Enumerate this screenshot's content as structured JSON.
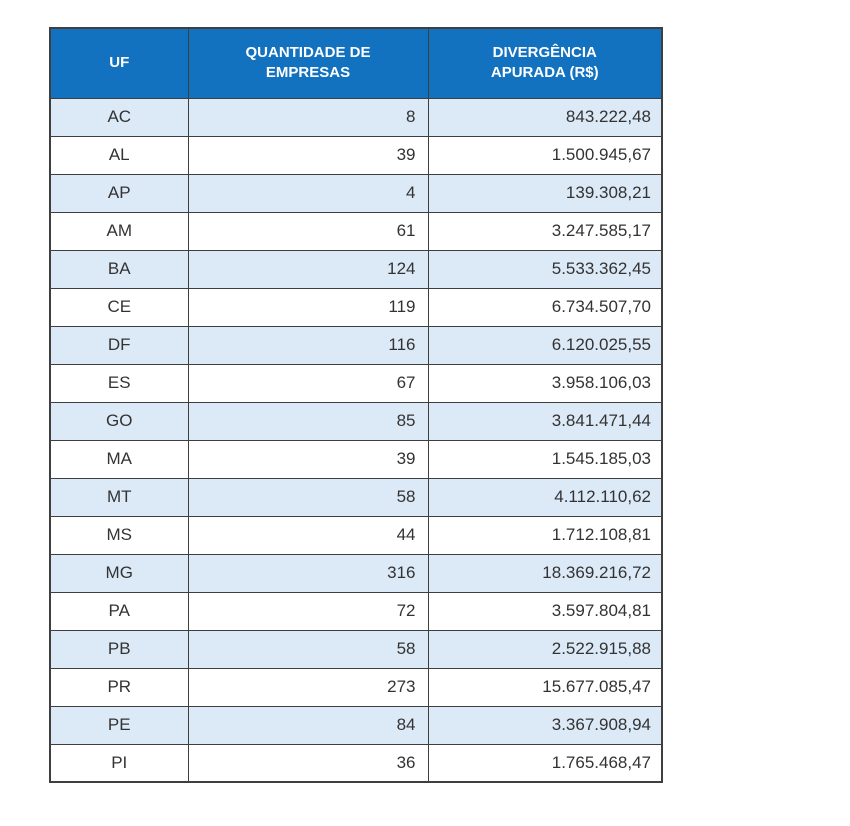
{
  "colors": {
    "header_bg": "#1272bf",
    "header_text": "#ffffff",
    "stripe_bg": "#dce9f7",
    "row_bg": "#ffffff",
    "border": "#3f3f3f",
    "text": "#333333"
  },
  "chart_data": {
    "type": "table",
    "title": "",
    "columns": [
      "UF",
      "QUANTIDADE DE EMPRESAS",
      "DIVERGÊNCIA APURADA (R$)"
    ],
    "rows": [
      [
        "AC",
        8,
        "843.222,48"
      ],
      [
        "AL",
        39,
        "1.500.945,67"
      ],
      [
        "AP",
        4,
        "139.308,21"
      ],
      [
        "AM",
        61,
        "3.247.585,17"
      ],
      [
        "BA",
        124,
        "5.533.362,45"
      ],
      [
        "CE",
        119,
        "6.734.507,70"
      ],
      [
        "DF",
        116,
        "6.120.025,55"
      ],
      [
        "ES",
        67,
        "3.958.106,03"
      ],
      [
        "GO",
        85,
        "3.841.471,44"
      ],
      [
        "MA",
        39,
        "1.545.185,03"
      ],
      [
        "MT",
        58,
        "4.112.110,62"
      ],
      [
        "MS",
        44,
        "1.712.108,81"
      ],
      [
        "MG",
        316,
        "18.369.216,72"
      ],
      [
        "PA",
        72,
        "3.597.804,81"
      ],
      [
        "PB",
        58,
        "2.522.915,88"
      ],
      [
        "PR",
        273,
        "15.677.085,47"
      ],
      [
        "PE",
        84,
        "3.367.908,94"
      ],
      [
        "PI",
        36,
        "1.765.468,47"
      ]
    ],
    "layout": {
      "stripe_pattern": "first-row-shaded-alternating",
      "column_alignments": [
        "center",
        "right",
        "right"
      ]
    }
  }
}
